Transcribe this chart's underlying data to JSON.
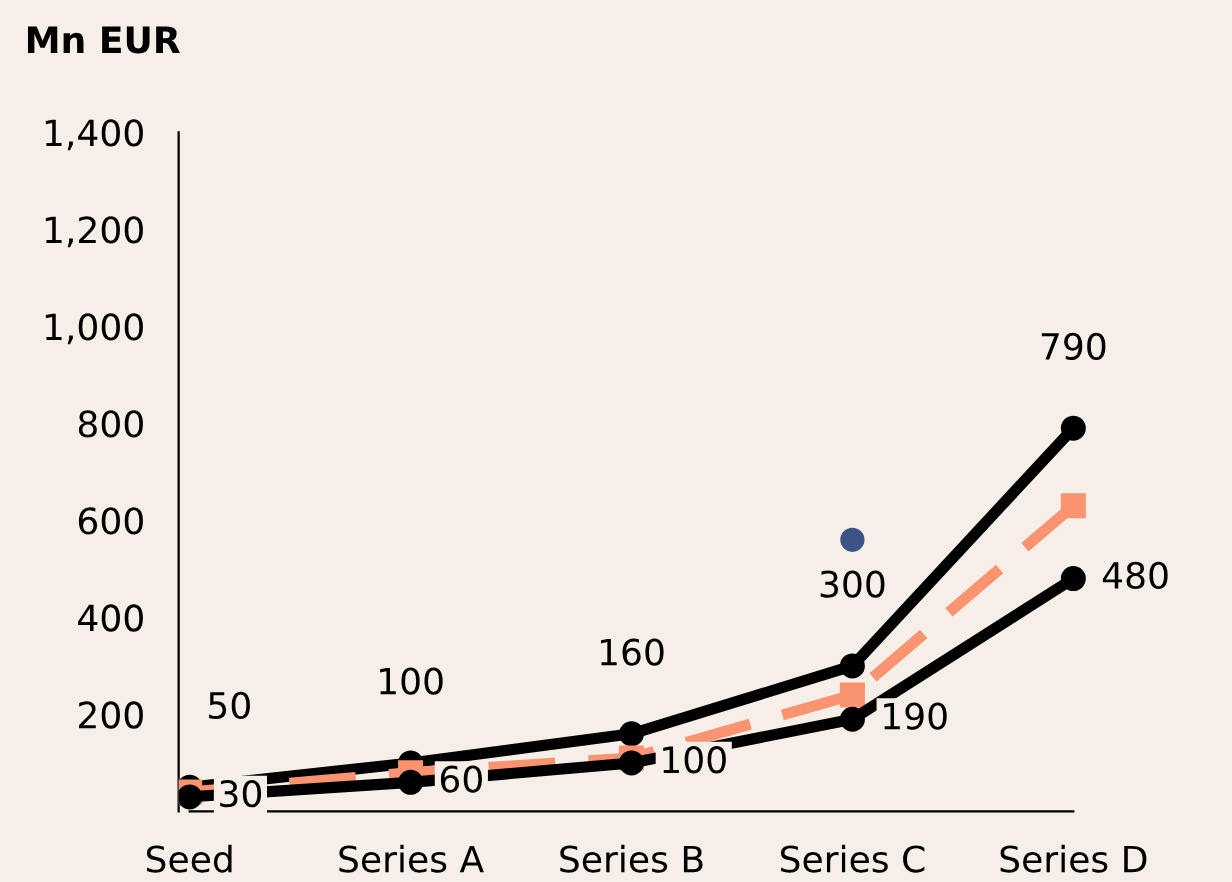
{
  "chart_data": {
    "type": "line",
    "ylabel": "Mn EUR",
    "categories": [
      "Seed",
      "Series A",
      "Series B",
      "Series C",
      "Series D"
    ],
    "ylim": [
      0,
      1400
    ],
    "yticks": [
      {
        "value": 200,
        "label": "200"
      },
      {
        "value": 400,
        "label": "400"
      },
      {
        "value": 600,
        "label": "600"
      },
      {
        "value": 800,
        "label": "800"
      },
      {
        "value": 1000,
        "label": "1,000"
      },
      {
        "value": 1200,
        "label": "1,200"
      },
      {
        "value": 1400,
        "label": "1,400"
      }
    ],
    "grid": false,
    "legend": false,
    "marker": "circle",
    "series": [
      {
        "color": "#000000",
        "values": [
          50,
          100,
          160,
          300,
          790
        ],
        "value_labels": [
          "50",
          "100",
          "160",
          "300",
          "790"
        ]
      },
      {
        "color": "#fa9370",
        "values": [
          40,
          80,
          110,
          240,
          630
        ],
        "marker": "square",
        "line_style": "dashed"
      },
      {
        "color": "#000000",
        "values": [
          30,
          60,
          100,
          190,
          480
        ],
        "value_labels": [
          "30",
          "60",
          "100",
          "190",
          "480"
        ]
      },
      {
        "type": "scatter",
        "color": "#3b5387",
        "x": [
          "Series C"
        ],
        "values": [
          560
        ]
      }
    ]
  }
}
